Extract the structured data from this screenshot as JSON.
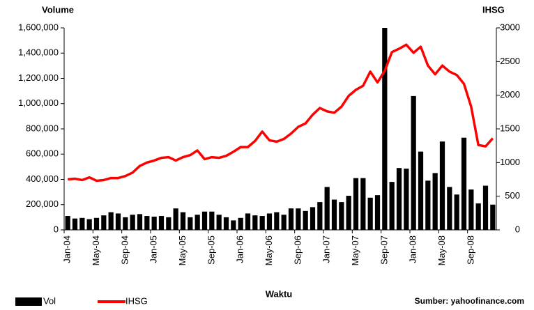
{
  "chart_data": {
    "type": "bar-line",
    "y_label": "Volume",
    "y2_label": "IHSG",
    "x_label": "Waktu",
    "source": "Sumber: yahoofinance.com",
    "categories": [
      "Jan-04",
      null,
      null,
      null,
      "May-04",
      null,
      null,
      null,
      "Sep-04",
      null,
      null,
      null,
      "Jan-05",
      null,
      null,
      null,
      "May-05",
      null,
      null,
      null,
      "Sep-05",
      null,
      null,
      null,
      "Jan-06",
      null,
      null,
      null,
      "May-06",
      null,
      null,
      null,
      "Sep-06",
      null,
      null,
      null,
      "Jan-07",
      null,
      null,
      null,
      "May-07",
      null,
      null,
      null,
      "Sep-07",
      null,
      null,
      null,
      "Jan-08",
      null,
      null,
      null,
      "May-08",
      null,
      null,
      null,
      "Sep-08",
      null,
      null,
      null
    ],
    "series": [
      {
        "name": "Vol",
        "color": "#000000",
        "values": [
          110000,
          90000,
          95000,
          85000,
          95000,
          115000,
          140000,
          130000,
          100000,
          120000,
          125000,
          110000,
          105000,
          110000,
          100000,
          170000,
          140000,
          100000,
          120000,
          145000,
          145000,
          120000,
          100000,
          75000,
          95000,
          130000,
          115000,
          110000,
          130000,
          140000,
          120000,
          170000,
          170000,
          150000,
          180000,
          220000,
          340000,
          240000,
          220000,
          270000,
          410000,
          410000,
          255000,
          275000,
          1600000,
          380000,
          490000,
          485000,
          1060000,
          620000,
          390000,
          450000,
          700000,
          340000,
          280000,
          730000,
          320000,
          210000,
          350000,
          200000
        ]
      },
      {
        "name": "IHSG",
        "color": "#ff0000",
        "axis": "y2",
        "values": [
          750,
          760,
          740,
          780,
          730,
          740,
          770,
          770,
          800,
          850,
          950,
          1000,
          1030,
          1070,
          1080,
          1030,
          1080,
          1110,
          1180,
          1050,
          1080,
          1070,
          1100,
          1160,
          1230,
          1230,
          1320,
          1460,
          1330,
          1310,
          1350,
          1430,
          1530,
          1580,
          1710,
          1810,
          1760,
          1740,
          1830,
          1990,
          2080,
          2140,
          2350,
          2190,
          2360,
          2640,
          2690,
          2750,
          2630,
          2720,
          2440,
          2310,
          2440,
          2350,
          2300,
          2170,
          1830,
          1260,
          1240,
          1360
        ]
      }
    ],
    "ylim": [
      0,
      1600000
    ],
    "yticks": [
      0,
      {
        "value": 200000,
        "label": "200,000"
      },
      {
        "value": 400000,
        "label": "400,000"
      },
      {
        "value": 600000,
        "label": "600,000"
      },
      {
        "value": 800000,
        "label": "800,000"
      },
      {
        "value": 1000000,
        "label": "1,000,000"
      },
      {
        "value": 1200000,
        "label": "1,200,000"
      },
      {
        "value": 1400000,
        "label": "1,400,000"
      },
      {
        "value": 1600000,
        "label": "1,600,000"
      }
    ],
    "y2lim": [
      0,
      3000
    ],
    "y2ticks": [
      0,
      500,
      1000,
      1500,
      2000,
      2500,
      3000
    ]
  }
}
